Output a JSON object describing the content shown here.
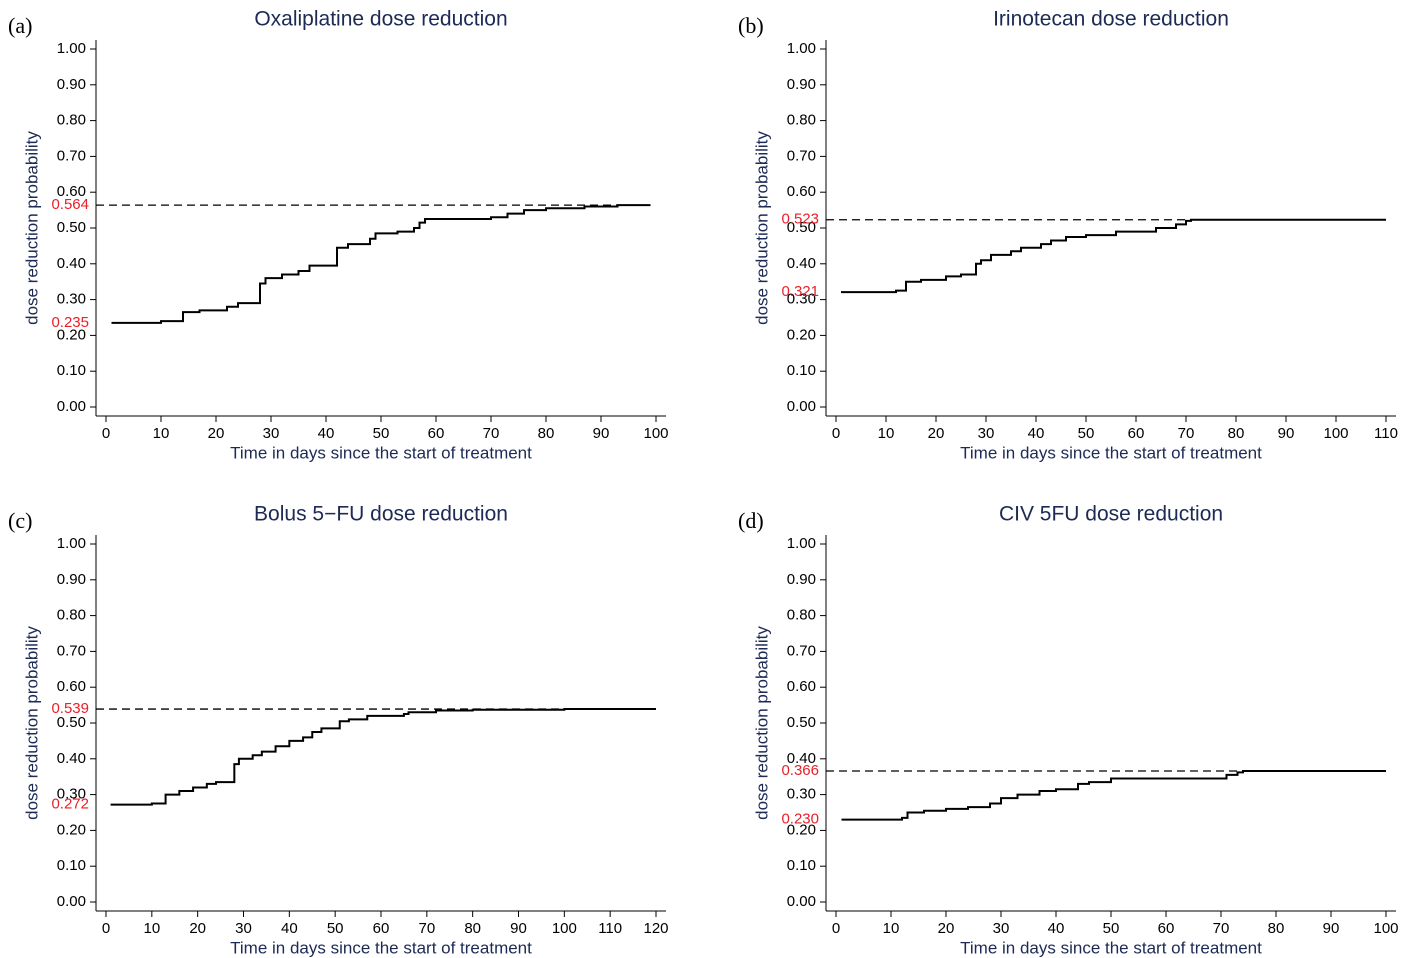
{
  "chart_data": [
    {
      "type": "step",
      "panel": "(a)",
      "title": "Oxaliplatine dose reduction",
      "x_label": "Time in days since the start of treatment",
      "y_label": "dose reduction probability",
      "color": "#000000",
      "x": [
        1,
        10,
        14,
        17,
        22,
        24,
        28,
        29,
        32,
        35,
        37,
        42,
        44,
        48,
        49,
        53,
        56,
        57,
        58,
        70,
        73,
        76,
        80,
        87,
        93,
        99
      ],
      "values": [
        0.235,
        0.24,
        0.265,
        0.27,
        0.28,
        0.29,
        0.345,
        0.36,
        0.37,
        0.38,
        0.395,
        0.445,
        0.455,
        0.47,
        0.485,
        0.49,
        0.5,
        0.515,
        0.525,
        0.53,
        0.54,
        0.55,
        0.555,
        0.56,
        0.564,
        0.564
      ],
      "annotations": [
        {
          "value": 0.564,
          "label": "0.564",
          "dashed": true
        },
        {
          "value": 0.235,
          "label": "0.235",
          "dashed": false
        }
      ],
      "xlim": [
        0,
        100
      ],
      "xticks": [
        0,
        10,
        20,
        30,
        40,
        50,
        60,
        70,
        80,
        90,
        100
      ],
      "ylim": [
        0,
        1
      ],
      "yticks": [
        {
          "value": 0,
          "label": "0.00"
        },
        {
          "value": 0.1,
          "label": "0.10"
        },
        {
          "value": 0.2,
          "label": "0.20"
        },
        {
          "value": 0.3,
          "label": "0.30"
        },
        {
          "value": 0.4,
          "label": "0.40"
        },
        {
          "value": 0.5,
          "label": "0.50"
        },
        {
          "value": 0.6,
          "label": "0.60"
        },
        {
          "value": 0.7,
          "label": "0.70"
        },
        {
          "value": 0.8,
          "label": "0.80"
        },
        {
          "value": 0.9,
          "label": "0.90"
        },
        {
          "value": 1,
          "label": "1.00"
        }
      ]
    },
    {
      "type": "step",
      "panel": "(b)",
      "title": "Irinotecan dose reduction",
      "x_label": "Time in days since the start of treatment",
      "y_label": "dose reduction probability",
      "color": "#000000",
      "x": [
        1,
        12,
        14,
        17,
        22,
        25,
        28,
        29,
        31,
        35,
        37,
        41,
        43,
        46,
        50,
        56,
        64,
        68,
        70,
        71,
        110
      ],
      "values": [
        0.321,
        0.325,
        0.35,
        0.355,
        0.365,
        0.37,
        0.4,
        0.41,
        0.425,
        0.435,
        0.445,
        0.455,
        0.465,
        0.475,
        0.48,
        0.49,
        0.5,
        0.51,
        0.52,
        0.523,
        0.523
      ],
      "annotations": [
        {
          "value": 0.523,
          "label": "0.523",
          "dashed": true
        },
        {
          "value": 0.321,
          "label": "0.321",
          "dashed": false
        }
      ],
      "xlim": [
        0,
        110
      ],
      "xticks": [
        0,
        10,
        20,
        30,
        40,
        50,
        60,
        70,
        80,
        90,
        100,
        110
      ],
      "ylim": [
        0,
        1
      ],
      "yticks": [
        {
          "value": 0,
          "label": "0.00"
        },
        {
          "value": 0.1,
          "label": "0.10"
        },
        {
          "value": 0.2,
          "label": "0.20"
        },
        {
          "value": 0.3,
          "label": "0.30"
        },
        {
          "value": 0.4,
          "label": "0.40"
        },
        {
          "value": 0.5,
          "label": "0.50"
        },
        {
          "value": 0.6,
          "label": "0.60"
        },
        {
          "value": 0.7,
          "label": "0.70"
        },
        {
          "value": 0.8,
          "label": "0.80"
        },
        {
          "value": 0.9,
          "label": "0.90"
        },
        {
          "value": 1,
          "label": "1.00"
        }
      ]
    },
    {
      "type": "step",
      "panel": "(c)",
      "title": "Bolus 5−FU dose reduction",
      "x_label": "Time in days since the start of treatment",
      "y_label": "dose reduction probability",
      "color": "#000000",
      "x": [
        1,
        10,
        13,
        16,
        19,
        22,
        24,
        28,
        29,
        32,
        34,
        37,
        40,
        43,
        45,
        47,
        51,
        53,
        57,
        65,
        66,
        72,
        80,
        100,
        120
      ],
      "values": [
        0.272,
        0.275,
        0.3,
        0.31,
        0.32,
        0.33,
        0.335,
        0.385,
        0.4,
        0.41,
        0.42,
        0.435,
        0.45,
        0.46,
        0.475,
        0.485,
        0.505,
        0.51,
        0.52,
        0.525,
        0.53,
        0.535,
        0.537,
        0.539,
        0.539
      ],
      "annotations": [
        {
          "value": 0.539,
          "label": "0.539",
          "dashed": true
        },
        {
          "value": 0.272,
          "label": "0.272",
          "dashed": false
        }
      ],
      "xlim": [
        0,
        120
      ],
      "xticks": [
        0,
        10,
        20,
        30,
        40,
        50,
        60,
        70,
        80,
        90,
        100,
        110,
        120
      ],
      "ylim": [
        0,
        1
      ],
      "yticks": [
        {
          "value": 0,
          "label": "0.00"
        },
        {
          "value": 0.1,
          "label": "0.10"
        },
        {
          "value": 0.2,
          "label": "0.20"
        },
        {
          "value": 0.3,
          "label": "0.30"
        },
        {
          "value": 0.4,
          "label": "0.40"
        },
        {
          "value": 0.5,
          "label": "0.50"
        },
        {
          "value": 0.6,
          "label": "0.60"
        },
        {
          "value": 0.7,
          "label": "0.70"
        },
        {
          "value": 0.8,
          "label": "0.80"
        },
        {
          "value": 0.9,
          "label": "0.90"
        },
        {
          "value": 1,
          "label": "1.00"
        }
      ]
    },
    {
      "type": "step",
      "panel": "(d)",
      "title": "CIV 5FU dose reduction",
      "x_label": "Time in days since the start of treatment",
      "y_label": "dose reduction probability",
      "color": "#000000",
      "x": [
        1,
        12,
        13,
        16,
        20,
        24,
        28,
        30,
        33,
        37,
        40,
        44,
        46,
        50,
        71,
        73,
        74,
        100
      ],
      "values": [
        0.23,
        0.235,
        0.25,
        0.255,
        0.26,
        0.265,
        0.275,
        0.29,
        0.3,
        0.31,
        0.315,
        0.33,
        0.335,
        0.345,
        0.355,
        0.362,
        0.366,
        0.366
      ],
      "annotations": [
        {
          "value": 0.366,
          "label": "0.366",
          "dashed": true
        },
        {
          "value": 0.23,
          "label": "0.230",
          "dashed": false
        }
      ],
      "xlim": [
        0,
        100
      ],
      "xticks": [
        0,
        10,
        20,
        30,
        40,
        50,
        60,
        70,
        80,
        90,
        100
      ],
      "ylim": [
        0,
        1
      ],
      "yticks": [
        {
          "value": 0,
          "label": "0.00"
        },
        {
          "value": 0.1,
          "label": "0.10"
        },
        {
          "value": 0.2,
          "label": "0.20"
        },
        {
          "value": 0.3,
          "label": "0.30"
        },
        {
          "value": 0.4,
          "label": "0.40"
        },
        {
          "value": 0.5,
          "label": "0.50"
        },
        {
          "value": 0.6,
          "label": "0.60"
        },
        {
          "value": 0.7,
          "label": "0.70"
        },
        {
          "value": 0.8,
          "label": "0.80"
        },
        {
          "value": 0.9,
          "label": "0.90"
        },
        {
          "value": 1,
          "label": "1.00"
        }
      ]
    }
  ]
}
